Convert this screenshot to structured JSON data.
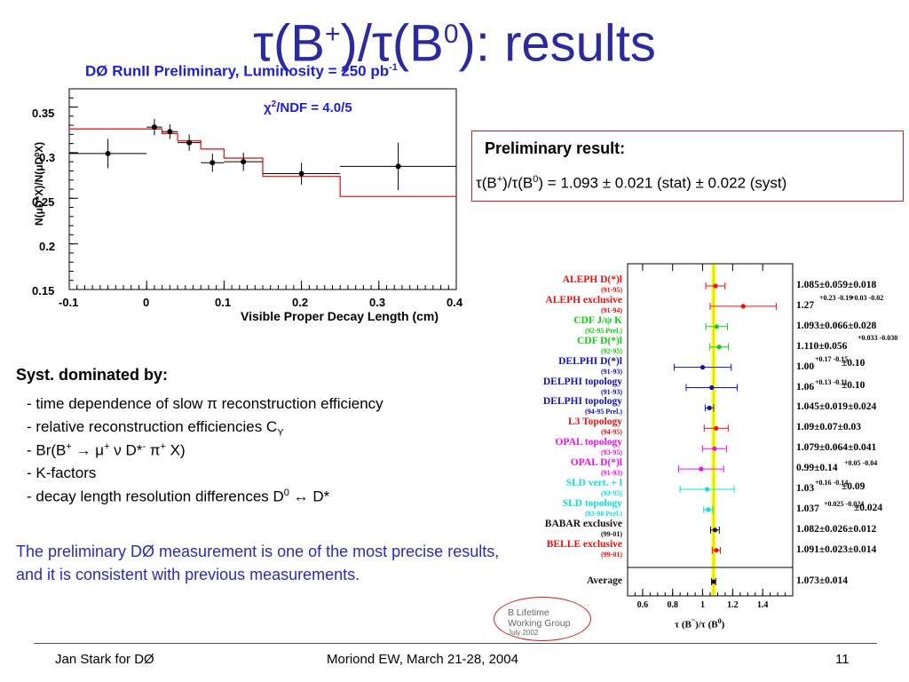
{
  "title": {
    "t1": "τ(B",
    "sup1": "+",
    "t2": ")/τ(B",
    "sup2": "0",
    "t3": "): results"
  },
  "plot": {
    "header": "DØ  RunII  Preliminary, Luminosity = 250 pb",
    "header_sup": "-1",
    "chi2_prefix": "χ",
    "chi2_sup": "2",
    "chi2_rest": "/NDF = 4.0/5",
    "ylabel": "N(μD*X)/N(μD⁰X)",
    "xlabel": "Visible Proper Decay Length (cm)",
    "yticks": [
      "0.35",
      "0.3",
      "0.25",
      "0.2",
      "0.15"
    ],
    "xticks": [
      "-0.1",
      "0",
      "0.1",
      "0.2",
      "0.3",
      "0.4"
    ]
  },
  "chart_data": [
    {
      "type": "scatter",
      "xlabel": "Visible Proper Decay Length (cm)",
      "ylabel": "N(μD*X)/N(μD⁰X)",
      "xlim": [
        -0.1,
        0.4
      ],
      "ylim": [
        0.15,
        0.37
      ],
      "points": [
        {
          "x": -0.05,
          "y": 0.299,
          "xlo": -0.1,
          "xhi": 0.0,
          "yerr": 0.016
        },
        {
          "x": 0.01,
          "y": 0.328,
          "xlo": 0.0,
          "xhi": 0.02,
          "yerr": 0.009
        },
        {
          "x": 0.03,
          "y": 0.323,
          "xlo": 0.02,
          "xhi": 0.04,
          "yerr": 0.008
        },
        {
          "x": 0.055,
          "y": 0.311,
          "xlo": 0.04,
          "xhi": 0.07,
          "yerr": 0.009
        },
        {
          "x": 0.085,
          "y": 0.289,
          "xlo": 0.07,
          "xhi": 0.1,
          "yerr": 0.01
        },
        {
          "x": 0.125,
          "y": 0.29,
          "xlo": 0.1,
          "xhi": 0.15,
          "yerr": 0.01
        },
        {
          "x": 0.2,
          "y": 0.277,
          "xlo": 0.15,
          "xhi": 0.25,
          "yerr": 0.012
        },
        {
          "x": 0.325,
          "y": 0.285,
          "xlo": 0.25,
          "xhi": 0.4,
          "yerr": 0.026
        }
      ],
      "fit_steps": [
        {
          "x0": -0.1,
          "x1": 0.0,
          "y": 0.326
        },
        {
          "x0": 0.0,
          "x1": 0.02,
          "y": 0.326
        },
        {
          "x0": 0.02,
          "x1": 0.04,
          "y": 0.321
        },
        {
          "x0": 0.04,
          "x1": 0.07,
          "y": 0.313
        },
        {
          "x0": 0.07,
          "x1": 0.1,
          "y": 0.304
        },
        {
          "x0": 0.1,
          "x1": 0.15,
          "y": 0.294
        },
        {
          "x0": 0.15,
          "x1": 0.25,
          "y": 0.274
        },
        {
          "x0": 0.25,
          "x1": 0.4,
          "y": 0.252
        }
      ]
    },
    {
      "type": "scatter",
      "xlabel": "τ (B⁻)/τ (B⁰)",
      "xlim": [
        0.5,
        1.6
      ],
      "xticks": [
        "0.6",
        "0.8",
        "1",
        "1.2",
        "1.4"
      ],
      "band": {
        "center": 1.073,
        "half_width": 0.014
      },
      "rows": [
        {
          "name": "ALEPH D(*)l",
          "year": "(91-95)",
          "color": "#ee1111",
          "value": 1.085,
          "err": 0.064,
          "label": "1.085±0.059±0.018"
        },
        {
          "name": "ALEPH exclusive",
          "year": "(91-94)",
          "color": "#ee1111",
          "value": 1.27,
          "err": 0.22,
          "label": "1.27"
        },
        {
          "name": "CDF J/ψ K",
          "year": "(92-95 Prel.)",
          "color": "#11cc11",
          "value": 1.093,
          "err": 0.072,
          "label": "1.093±0.066±0.028"
        },
        {
          "name": "CDF  D(*)l",
          "year": "(92-95)",
          "color": "#11cc11",
          "value": 1.11,
          "err": 0.062,
          "label": "1.110±0.056"
        },
        {
          "name": "DELPHI D(*)l",
          "year": "(91-93)",
          "color": "#1111bb",
          "value": 1.0,
          "err": 0.19,
          "label": "1.00"
        },
        {
          "name": "DELPHI topology",
          "year": "(91-93)",
          "color": "#1111bb",
          "value": 1.06,
          "err": 0.17,
          "label": "1.06"
        },
        {
          "name": "DELPHI topology",
          "year": "(94-95 Prel.)",
          "color": "#1111bb",
          "value": 1.045,
          "err": 0.028,
          "label": "1.045±0.019±0.024"
        },
        {
          "name": "L3 Topology",
          "year": "(94-95)",
          "color": "#ee1111",
          "value": 1.09,
          "err": 0.08,
          "label": "1.09±0.07±0.03"
        },
        {
          "name": "OPAL topology",
          "year": "(93-95)",
          "color": "#ee11ee",
          "value": 1.079,
          "err": 0.08,
          "label": "1.079±0.064±0.041"
        },
        {
          "name": "OPAL D(*)l",
          "year": "(91-93)",
          "color": "#ee11ee",
          "value": 0.99,
          "err": 0.15,
          "label": "0.99±0.14"
        },
        {
          "name": "SLD vert. + l",
          "year": "(93-95)",
          "color": "#11dddd",
          "value": 1.03,
          "err": 0.18,
          "label": "1.03"
        },
        {
          "name": "SLD topology",
          "year": "(93-98 Prel.)",
          "color": "#11dddd",
          "value": 1.037,
          "err": 0.03,
          "label": "1.037"
        },
        {
          "name": "BABAR exclusive",
          "year": "(99-01)",
          "color": "#111111",
          "value": 1.082,
          "err": 0.029,
          "label": "1.082±0.026±0.012"
        },
        {
          "name": "BELLE exclusive",
          "year": "(99-01)",
          "color": "#ee1111",
          "value": 1.091,
          "err": 0.027,
          "label": "1.091±0.023±0.014"
        }
      ],
      "average": {
        "name": "Average",
        "value": 1.073,
        "err": 0.014,
        "label": "1.073±0.014",
        "color": "#111111"
      }
    }
  ],
  "result_box": {
    "title": "Preliminary result:",
    "l1": "τ(B",
    "sup1": "+",
    "l2": ")/τ(B",
    "sup2": "0",
    "l3": ") = 1.093 ± 0.021 (stat) ± 0.022 (syst)"
  },
  "syst": {
    "heading": "Syst. dominated by:",
    "item1": "- time dependence of slow π reconstruction efficiency",
    "item2": "- relative reconstruction efficiencies C",
    "item2_sub": "Y",
    "item3a": "- Br(B",
    "item3_sup1": "+",
    "item3b": " → μ",
    "item3_sup2": "+",
    "item3c": " ν D*",
    "item3_sup3": "-",
    "item3d": " π",
    "item3_sup4": "+",
    "item3e": " X)",
    "item4": "- K-factors",
    "item5a": "- decay length resolution differences D",
    "item5_sup": "0",
    "item5b": " ↔ D*"
  },
  "conclusion": "The preliminary DØ measurement is one of the most precise results, and it is consistent with previous measurements.",
  "lwg": {
    "line1": "B Lifetime",
    "line2": "Working Group",
    "line3": "July 2002"
  },
  "comparison_extras": {
    "aleph_excl_errs": "+0.23 -0.19",
    "aleph_excl_syst": "+0.03 -0.02",
    "cdf_dl_syst": "+0.033 -0.030",
    "delphi_dl_stat": "+0.17 -0.15",
    "delphi_dl_syst": "±0.10",
    "delphi_topo_stat": "+0.13 -0.11",
    "delphi_topo_syst": "±0.10",
    "opal_dl_syst": "+0.05 -0.04",
    "sld_vert_stat": "+0.16 -0.14",
    "sld_vert_syst": "±0.09",
    "sld_topo_stat": "+0.025 -0.024",
    "sld_topo_syst": "±0.024",
    "xlabel_a": "τ (B",
    "xlabel_sup": "⁻",
    "xlabel_b": ")/τ (B",
    "xlabel_sup2": "0",
    "xlabel_c": ")"
  },
  "footer": {
    "left": "Jan Stark for DØ",
    "center": "Moriond EW, March 21-28, 2004",
    "page": "11"
  }
}
